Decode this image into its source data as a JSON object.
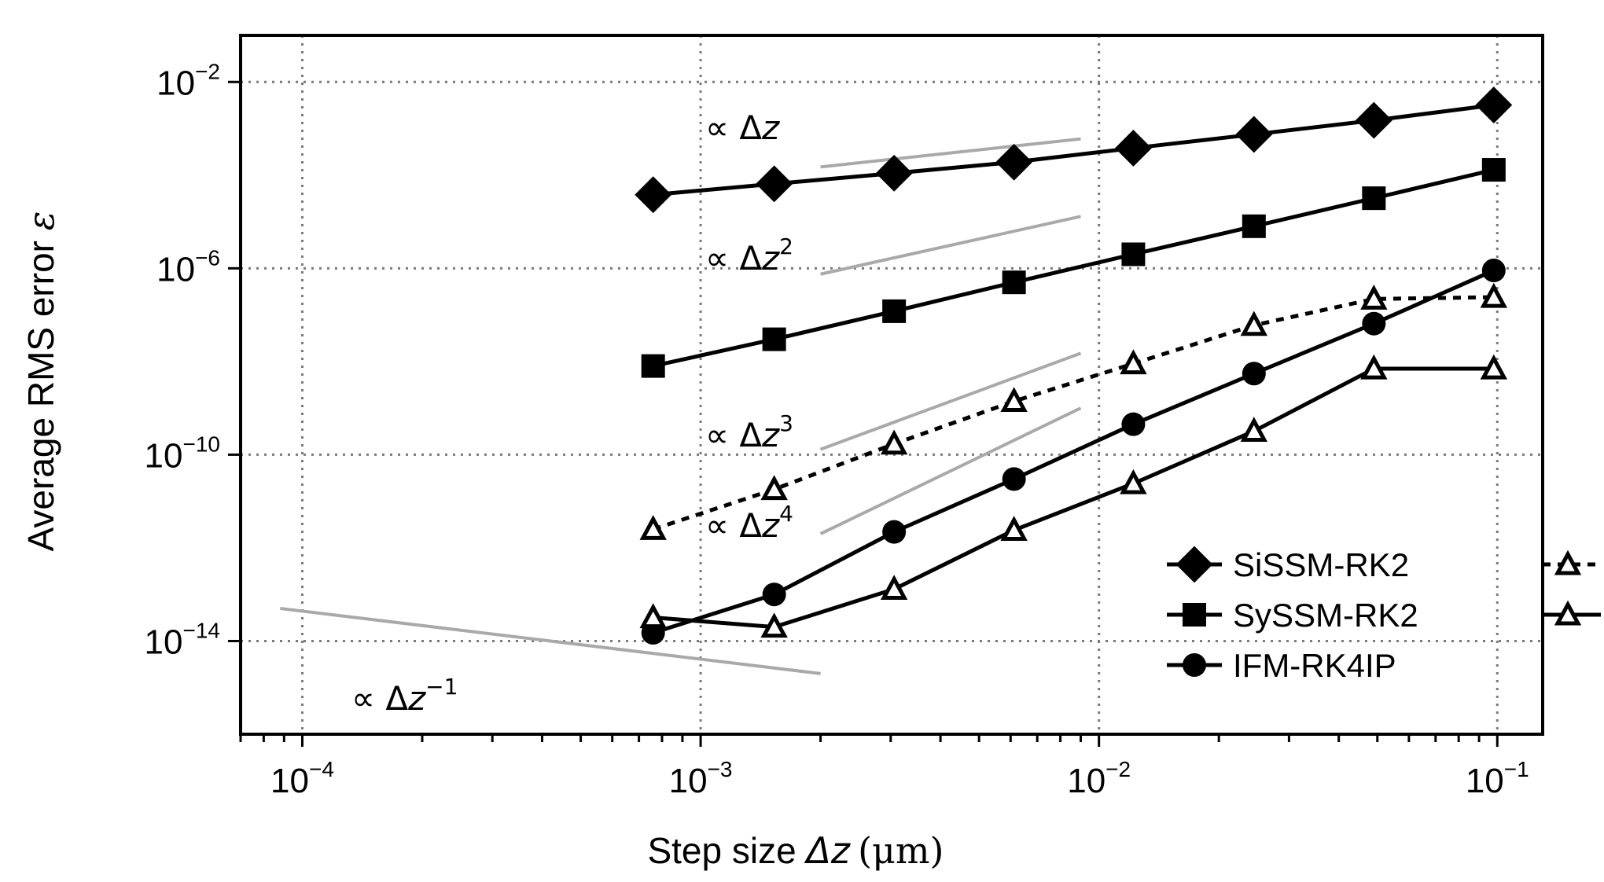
{
  "chart_data": {
    "type": "line",
    "x_scale": "log",
    "y_scale": "log",
    "xlim": [
      7e-05,
      0.13
    ],
    "ylim": [
      1e-16,
      0.1
    ],
    "xlabel": {
      "prefix": "Step size ",
      "symbol": "Δz",
      "unit": "(μm)"
    },
    "ylabel": {
      "prefix": "Average RMS error ",
      "symbol": "ε"
    },
    "x_ticks": [
      {
        "value": 0.0001,
        "base": "10",
        "exp": "−4"
      },
      {
        "value": 0.001,
        "base": "10",
        "exp": "−3"
      },
      {
        "value": 0.01,
        "base": "10",
        "exp": "−2"
      },
      {
        "value": 0.1,
        "base": "10",
        "exp": "−1"
      }
    ],
    "y_ticks": [
      {
        "value": 1e-14,
        "base": "10",
        "exp": "−14"
      },
      {
        "value": 1e-10,
        "base": "10",
        "exp": "−10"
      },
      {
        "value": 1e-06,
        "base": "10",
        "exp": "−6"
      },
      {
        "value": 0.01,
        "base": "10",
        "exp": "−2"
      }
    ],
    "grid": true,
    "legend_placement": "lower-right",
    "series": [
      {
        "name": "SiSSM-RK2",
        "marker": "diamond",
        "line": "solid",
        "x": [
          0.00076,
          0.00153,
          0.00306,
          0.00612,
          0.0122,
          0.0245,
          0.049,
          0.098
        ],
        "y": [
          3.8e-05,
          6.5e-05,
          0.00011,
          0.00019,
          0.00038,
          0.00075,
          0.0015,
          0.0032
        ]
      },
      {
        "name": "SySSM-RK2",
        "marker": "square",
        "line": "solid",
        "x": [
          0.00076,
          0.00153,
          0.00306,
          0.00612,
          0.0122,
          0.0245,
          0.049,
          0.098
        ],
        "y": [
          8e-09,
          3e-08,
          1.2e-07,
          5e-07,
          2e-06,
          8e-06,
          3.2e-05,
          0.00013
        ]
      },
      {
        "name": "IFM-RK4IP",
        "marker": "circle",
        "line": "solid",
        "x": [
          0.00076,
          0.00153,
          0.00306,
          0.00612,
          0.0122,
          0.0245,
          0.049,
          0.098
        ],
        "y": [
          1.5e-14,
          1e-13,
          2.2e-12,
          3e-11,
          4.5e-10,
          5.5e-09,
          6.5e-08,
          9e-07
        ]
      },
      {
        "name": "",
        "marker": "triangle-open",
        "line": "dotted",
        "x": [
          0.00076,
          0.00153,
          0.00306,
          0.00612,
          0.0122,
          0.0245,
          0.049,
          0.098
        ],
        "y": [
          2.5e-12,
          1.8e-11,
          1.7e-10,
          1.4e-09,
          9e-09,
          6e-08,
          2.2e-07,
          2.4e-07
        ]
      },
      {
        "name": "",
        "marker": "triangle-open",
        "line": "solid",
        "x": [
          0.00076,
          0.00153,
          0.00306,
          0.00612,
          0.0122,
          0.0245,
          0.049,
          0.098
        ],
        "y": [
          3.2e-14,
          2e-14,
          1.3e-13,
          2.4e-12,
          2.4e-11,
          3.2e-10,
          7e-09,
          7e-09
        ]
      }
    ],
    "reference_lines": [
      {
        "label": "∝ Δz",
        "label_exp": "",
        "x": [
          0.002,
          0.009
        ],
        "y": [
          0.00015,
          0.0006
        ]
      },
      {
        "label": "∝ Δz",
        "label_exp": "2",
        "x": [
          0.002,
          0.009
        ],
        "y": [
          7.5e-07,
          1.3e-05
        ]
      },
      {
        "label": "∝ Δz",
        "label_exp": "3",
        "x": [
          0.002,
          0.009
        ],
        "y": [
          1.3e-10,
          1.5e-08
        ]
      },
      {
        "label": "∝ Δz",
        "label_exp": "4",
        "x": [
          0.002,
          0.009
        ],
        "y": [
          2e-12,
          1e-09
        ]
      },
      {
        "label": "∝ Δz",
        "label_exp": "−1",
        "x": [
          8.8e-05,
          0.002
        ],
        "y": [
          5e-14,
          2e-15
        ]
      }
    ]
  }
}
